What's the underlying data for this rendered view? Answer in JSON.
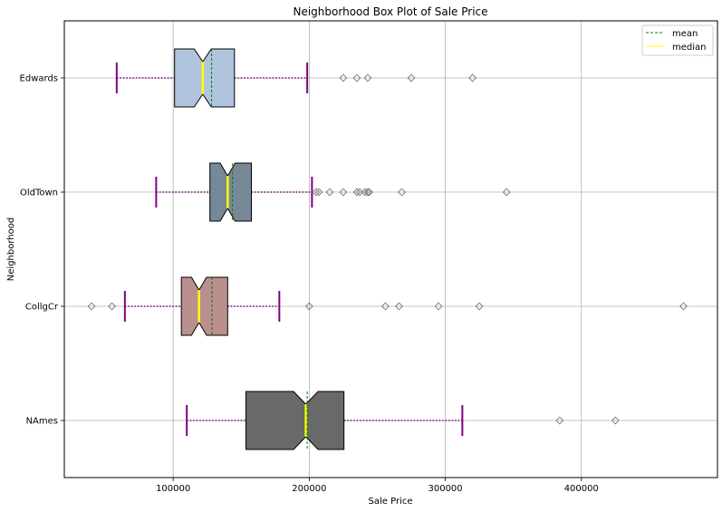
{
  "chart_data": {
    "type": "boxplot",
    "orientation": "horizontal",
    "title": "Neighborhood Box Plot of Sale Price",
    "xlabel": "Sale Price",
    "ylabel": "Neighborhood",
    "xlim": [
      20000,
      500000
    ],
    "xticks": [
      100000,
      200000,
      300000,
      400000
    ],
    "xtick_labels": [
      "100000",
      "200000",
      "300000",
      "400000"
    ],
    "grid": true,
    "notched": true,
    "legend": {
      "position": "top-right",
      "entries": [
        {
          "label": "mean",
          "color": "#008000",
          "style": "dashed"
        },
        {
          "label": "median",
          "color": "#ffff00",
          "style": "solid"
        }
      ]
    },
    "colors": {
      "whisker": "#800080",
      "cap": "#800080",
      "mean_line": "#008000",
      "median_line": "#ffff00",
      "box_edge": "#000000",
      "flier": "#808080",
      "grid": "#b0b0b0"
    },
    "categories": [
      "Edwards",
      "OldTown",
      "CollgCr",
      "NAmes"
    ],
    "series": [
      {
        "category": "Edwards",
        "whisker_low": 58500,
        "q1": 101000,
        "median": 121750,
        "notch_low": 115500,
        "notch_high": 128000,
        "q3": 145000,
        "whisker_high": 198500,
        "mean": 128220,
        "fliers": [
          225000,
          235000,
          243000,
          275000,
          320000
        ],
        "fill": "#b0c4de"
      },
      {
        "category": "OldTown",
        "whisker_low": 87500,
        "q1": 127000,
        "median": 140000,
        "notch_low": 134500,
        "notch_high": 145500,
        "q3": 157500,
        "whisker_high": 202000,
        "mean": 143600,
        "fliers": [
          205000,
          207000,
          215000,
          225000,
          235000,
          237000,
          241000,
          243000,
          244000,
          268000,
          345000
        ],
        "fill": "#778899"
      },
      {
        "category": "CollgCr",
        "whisker_low": 64500,
        "q1": 106000,
        "median": 119000,
        "notch_low": 113500,
        "notch_high": 124500,
        "q3": 140000,
        "whisker_high": 178000,
        "mean": 128500,
        "fliers": [
          40000,
          55000,
          200000,
          256000,
          266000,
          295000,
          325000,
          475000
        ],
        "fill": "#bc8f8f"
      },
      {
        "category": "NAmes",
        "whisker_low": 110000,
        "q1": 153500,
        "median": 197500,
        "notch_low": 188500,
        "notch_high": 206500,
        "q3": 225500,
        "whisker_high": 312500,
        "mean": 198500,
        "fliers": [
          384000,
          425000
        ],
        "fill": "#696969"
      }
    ]
  }
}
